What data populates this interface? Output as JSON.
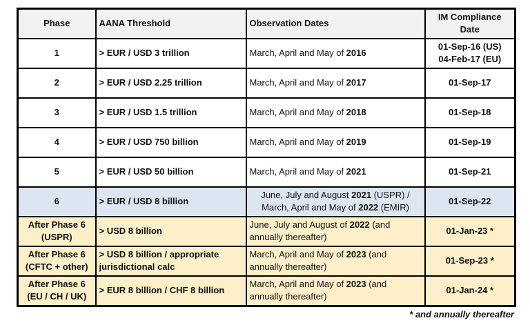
{
  "colors": {
    "header_bg": "#f2f2f2",
    "row_white": "#ffffff",
    "row_blue": "#dce6f1",
    "row_cream": "#fdefc9",
    "border": "#000000",
    "text": "#111111"
  },
  "table": {
    "headers": [
      "Phase",
      "AANA Threshold",
      "Observation Dates",
      "IM Compliance Date"
    ],
    "rows": [
      {
        "phase": [
          "1"
        ],
        "aana": "> EUR / USD 3 trillion",
        "obs": [
          [
            [
              "March, April and May of ",
              0
            ],
            [
              "2016",
              1
            ]
          ]
        ],
        "obs_align": "left",
        "im": [
          "01-Sep-16 (US)",
          "04-Feb-17 (EU)"
        ],
        "bg": "white"
      },
      {
        "phase": [
          "2"
        ],
        "aana": "> EUR / USD 2.25 trillion",
        "obs": [
          [
            [
              "March, April and May of ",
              0
            ],
            [
              "2017",
              1
            ]
          ]
        ],
        "obs_align": "left",
        "im": [
          "01-Sep-17"
        ],
        "bg": "white"
      },
      {
        "phase": [
          "3"
        ],
        "aana": "> EUR / USD 1.5 trillion",
        "obs": [
          [
            [
              "March, April and May of ",
              0
            ],
            [
              "2018",
              1
            ]
          ]
        ],
        "obs_align": "left",
        "im": [
          "01-Sep-18"
        ],
        "bg": "white"
      },
      {
        "phase": [
          "4"
        ],
        "aana": "> EUR / USD 750 billion",
        "obs": [
          [
            [
              "March, April and May of ",
              0
            ],
            [
              "2019",
              1
            ]
          ]
        ],
        "obs_align": "left",
        "im": [
          "01-Sep-19"
        ],
        "bg": "white"
      },
      {
        "phase": [
          "5"
        ],
        "aana": "> EUR / USD 50 billion",
        "obs": [
          [
            [
              "March, April and May of ",
              0
            ],
            [
              "2021",
              1
            ]
          ]
        ],
        "obs_align": "left",
        "im": [
          "01-Sep-21"
        ],
        "bg": "white"
      },
      {
        "phase": [
          "6"
        ],
        "aana": "> EUR / USD 8 billion",
        "obs": [
          [
            [
              "June, July and August ",
              0
            ],
            [
              "2021",
              1
            ],
            [
              " (USPR) /",
              0
            ]
          ],
          [
            [
              "March, April and May of ",
              0
            ],
            [
              "2022",
              1
            ],
            [
              " (EMIR)",
              0
            ]
          ]
        ],
        "obs_align": "center",
        "im": [
          "01-Sep-22"
        ],
        "bg": "blue"
      },
      {
        "phase": [
          "After Phase 6",
          "(USPR)"
        ],
        "aana": "> USD 8 billion",
        "obs": [
          [
            [
              "June, July and August of ",
              0
            ],
            [
              "2022",
              1
            ],
            [
              " (and",
              0
            ]
          ],
          [
            [
              "annually thereafter)",
              0
            ]
          ]
        ],
        "obs_align": "left",
        "im": [
          "01-Jan-23 *"
        ],
        "bg": "cream"
      },
      {
        "phase": [
          "After Phase 6",
          "(CFTC + other)"
        ],
        "aana": "> USD 8 billion / appropriate jurisdictional calc",
        "obs": [
          [
            [
              "March, April and May of ",
              0
            ],
            [
              "2023",
              1
            ],
            [
              " (and",
              0
            ]
          ],
          [
            [
              "annually thereafter)",
              0
            ]
          ]
        ],
        "obs_align": "left",
        "im": [
          "01-Sep-23 *"
        ],
        "bg": "cream"
      },
      {
        "phase": [
          "After Phase 6",
          "(EU / CH / UK)"
        ],
        "aana": "> EUR 8 billion / CHF 8 billion",
        "obs": [
          [
            [
              "March, April and May of ",
              0
            ],
            [
              "2023",
              1
            ],
            [
              " (and",
              0
            ]
          ],
          [
            [
              "annually thereafter)",
              0
            ]
          ]
        ],
        "obs_align": "left",
        "im": [
          "01-Jan-24 *"
        ],
        "bg": "cream"
      }
    ],
    "footnote": "* and annually thereafter"
  }
}
